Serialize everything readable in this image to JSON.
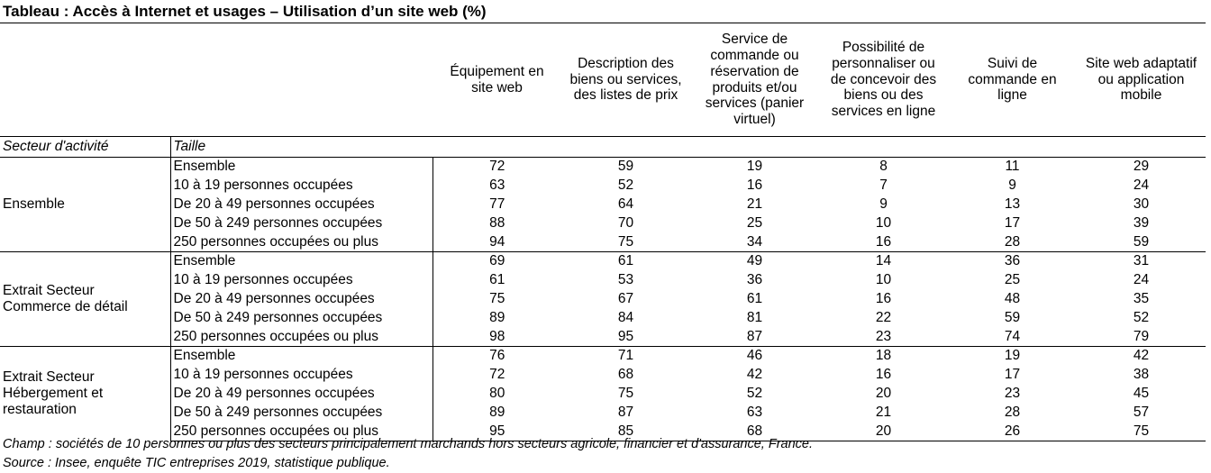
{
  "title": "Tableau : Accès à Internet et usages – Utilisation d’un site web (%)",
  "columns": [
    [
      "Équipement en",
      "site web"
    ],
    [
      "Description des",
      "biens ou services,",
      "des listes de prix"
    ],
    [
      "Service de",
      "commande ou",
      "réservation de",
      "produits et/ou",
      "services (panier",
      "virtuel)"
    ],
    [
      "Possibilité de",
      "personnaliser ou",
      "de concevoir des",
      "biens ou des",
      "services en ligne"
    ],
    [
      "Suivi de",
      "commande en",
      "ligne"
    ],
    [
      "Site web adaptatif",
      "ou application",
      "mobile"
    ]
  ],
  "sub_header": {
    "sector": "Secteur d'activité",
    "size": "Taille"
  },
  "groups": [
    {
      "sector": [
        "Ensemble"
      ],
      "rows": [
        {
          "size": "Ensemble",
          "values": [
            "72",
            "59",
            "19",
            "8",
            "11",
            "29"
          ]
        },
        {
          "size": "10 à 19 personnes occupées",
          "values": [
            "63",
            "52",
            "16",
            "7",
            "9",
            "24"
          ]
        },
        {
          "size": "De 20 à 49 personnes occupées",
          "values": [
            "77",
            "64",
            "21",
            "9",
            "13",
            "30"
          ]
        },
        {
          "size": "De 50 à 249 personnes occupées",
          "values": [
            "88",
            "70",
            "25",
            "10",
            "17",
            "39"
          ]
        },
        {
          "size": "250 personnes occupées ou plus",
          "values": [
            "94",
            "75",
            "34",
            "16",
            "28",
            "59"
          ]
        }
      ]
    },
    {
      "sector": [
        "Extrait Secteur",
        "Commerce de détail"
      ],
      "rows": [
        {
          "size": "Ensemble",
          "values": [
            "69",
            "61",
            "49",
            "14",
            "36",
            "31"
          ]
        },
        {
          "size": "10 à 19 personnes occupées",
          "values": [
            "61",
            "53",
            "36",
            "10",
            "25",
            "24"
          ]
        },
        {
          "size": "De 20 à 49 personnes occupées",
          "values": [
            "75",
            "67",
            "61",
            "16",
            "48",
            "35"
          ]
        },
        {
          "size": "De 50 à 249 personnes occupées",
          "values": [
            "89",
            "84",
            "81",
            "22",
            "59",
            "52"
          ]
        },
        {
          "size": "250 personnes occupées ou plus",
          "values": [
            "98",
            "95",
            "87",
            "23",
            "74",
            "79"
          ]
        }
      ]
    },
    {
      "sector": [
        "Extrait Secteur",
        "Hébergement et",
        "restauration"
      ],
      "rows": [
        {
          "size": "Ensemble",
          "values": [
            "76",
            "71",
            "46",
            "18",
            "19",
            "42"
          ]
        },
        {
          "size": "10 à 19 personnes occupées",
          "values": [
            "72",
            "68",
            "42",
            "16",
            "17",
            "38"
          ]
        },
        {
          "size": "De 20 à 49 personnes occupées",
          "values": [
            "80",
            "75",
            "52",
            "20",
            "23",
            "45"
          ]
        },
        {
          "size": "De 50 à 249 personnes occupées",
          "values": [
            "89",
            "87",
            "63",
            "21",
            "28",
            "57"
          ]
        },
        {
          "size": "250 personnes occupées ou plus",
          "values": [
            "95",
            "85",
            "68",
            "20",
            "26",
            "75"
          ]
        }
      ]
    }
  ],
  "footnotes": {
    "champ": "Champ : sociétés de 10 personnes ou plus des secteurs principalement marchands hors secteurs agricole, financier et d'assurance, France.",
    "source": "Source : Insee, enquête TIC entreprises 2019, statistique publique."
  }
}
